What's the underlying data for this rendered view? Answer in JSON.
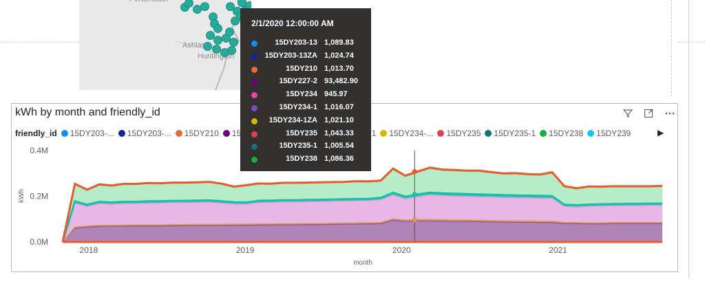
{
  "map": {
    "labels": [
      {
        "text": "Portsmouth",
        "left": 188,
        "top": -7
      },
      {
        "text": "Ashland",
        "left": 265,
        "top": 60
      },
      {
        "text": "Huntington",
        "left": 287,
        "top": 76
      }
    ]
  },
  "visual": {
    "title": "kWh by month and friendly_id",
    "icons": [
      "filter-icon",
      "focus-mode-icon",
      "more-options-icon"
    ]
  },
  "legend": {
    "title": "friendly_id",
    "items": [
      {
        "label": "15DY203-...",
        "color": "#118DFF"
      },
      {
        "label": "15DY203-...",
        "color": "#12239E"
      },
      {
        "label": "15DY210",
        "color": "#E66C37"
      },
      {
        "label": "15DY227-2",
        "color": "#6B007B"
      },
      {
        "label": "15DY234",
        "color": "#E044A7"
      },
      {
        "label": "15DY234-1",
        "color": "#744EC2"
      },
      {
        "label": "15DY234-...",
        "color": "#D9B300"
      },
      {
        "label": "15DY235",
        "color": "#D64550"
      },
      {
        "label": "15DY235-1",
        "color": "#197278"
      },
      {
        "label": "15DY238",
        "color": "#1AAB40"
      },
      {
        "label": "15DY239",
        "color": "#15C6F4"
      }
    ]
  },
  "tooltip": {
    "title": "2/1/2020 12:00:00 AM",
    "rows": [
      {
        "name": "15DY203-13",
        "value": "1,089.83",
        "color": "#118DFF"
      },
      {
        "name": "15DY203-13ZA",
        "value": "1,024.74",
        "color": "#12239E"
      },
      {
        "name": "15DY210",
        "value": "1,013.70",
        "color": "#E66C37"
      },
      {
        "name": "15DY227-2",
        "value": "93,482.90",
        "color": "#6B007B"
      },
      {
        "name": "15DY234",
        "value": "945.97",
        "color": "#E044A7"
      },
      {
        "name": "15DY234-1",
        "value": "1,016.07",
        "color": "#744EC2"
      },
      {
        "name": "15DY234-1ZA",
        "value": "1,021.10",
        "color": "#D9B300"
      },
      {
        "name": "15DY235",
        "value": "1,043.33",
        "color": "#D64550"
      },
      {
        "name": "15DY235-1",
        "value": "1,005.54",
        "color": "#197278"
      },
      {
        "name": "15DY238",
        "value": "1,086.36",
        "color": "#1AAB40"
      }
    ]
  },
  "chart_data": {
    "type": "area",
    "title": "kWh by month and friendly_id",
    "xlabel": "month",
    "ylabel": "kWh",
    "ylim": [
      0,
      400000
    ],
    "yticks": [
      "0.0M",
      "0.2M",
      "0.4M"
    ],
    "xticks": [
      "2018",
      "2019",
      "2020",
      "2021"
    ],
    "xrange": [
      "2017-11",
      "2021-09"
    ],
    "stacked": true,
    "grid": false,
    "legend_position": "top",
    "series_layers": [
      {
        "name": "base",
        "color": "#AF84B7",
        "values": [
          0,
          60000,
          65000,
          68000,
          68000,
          69000,
          70000,
          70000,
          70000,
          71000,
          71000,
          72000,
          72000,
          72000,
          73000,
          73000,
          74000,
          74000,
          75000,
          75000,
          76000,
          76000,
          77000,
          78000,
          78000,
          79000,
          80000,
          95000,
          90000,
          92000,
          92000,
          91000,
          90000,
          90000,
          89000,
          88000,
          87000,
          86000,
          86000,
          85000,
          85000,
          80000,
          80000,
          79000,
          79000,
          80000,
          80000,
          80000,
          80000,
          80000
        ]
      },
      {
        "name": "thin-orange",
        "color": "#E3A66B",
        "values": [
          0,
          5000,
          5000,
          5000,
          5000,
          5000,
          5000,
          5000,
          5000,
          5000,
          5000,
          5000,
          5000,
          5000,
          5000,
          5000,
          5000,
          5000,
          5000,
          5000,
          5000,
          5000,
          5000,
          5000,
          5000,
          5000,
          5000,
          6000,
          6000,
          6000,
          6000,
          6000,
          6000,
          6000,
          6000,
          6000,
          6000,
          6000,
          6000,
          6000,
          6000,
          5000,
          5000,
          5000,
          5000,
          5000,
          5000,
          5000,
          5000,
          5000
        ]
      },
      {
        "name": "pink",
        "color": "#E7B8E6",
        "values": [
          0,
          105000,
          85000,
          95000,
          92000,
          94000,
          93000,
          95000,
          95000,
          96000,
          96000,
          96000,
          97000,
          93000,
          88000,
          87000,
          93000,
          94000,
          95000,
          95000,
          95000,
          96000,
          96000,
          96000,
          97000,
          97000,
          100000,
          105000,
          93000,
          100000,
          108000,
          106000,
          105000,
          104000,
          103000,
          103000,
          102000,
          102000,
          101000,
          101000,
          100000,
          70000,
          68000,
          72000,
          73000,
          73000,
          74000,
          74000,
          75000,
          75000
        ]
      },
      {
        "name": "teal",
        "color": "#1CC9B3",
        "values": [
          0,
          8000,
          8000,
          8000,
          8000,
          8000,
          8000,
          8000,
          8000,
          8000,
          8000,
          8000,
          8000,
          8000,
          8000,
          8000,
          8000,
          8000,
          8000,
          8000,
          8000,
          8000,
          8000,
          8000,
          8000,
          8000,
          8000,
          10000,
          9000,
          10000,
          10000,
          10000,
          10000,
          10000,
          10000,
          10000,
          10000,
          10000,
          10000,
          10000,
          10000,
          8000,
          8000,
          8000,
          8000,
          8000,
          8000,
          8000,
          8000,
          8000
        ]
      },
      {
        "name": "light-green",
        "color": "#B4EDC7",
        "values": [
          0,
          72000,
          62000,
          72000,
          70000,
          74000,
          74000,
          76000,
          75000,
          76000,
          76000,
          76000,
          77000,
          73000,
          64000,
          71000,
          72000,
          70000,
          72000,
          72000,
          72000,
          72000,
          72000,
          72000,
          74000,
          72000,
          72000,
          100000,
          87000,
          95000,
          104000,
          99000,
          99000,
          97000,
          99000,
          94000,
          90000,
          92000,
          89000,
          88000,
          99000,
          77000,
          70000,
          75000,
          73000,
          74000,
          73000,
          73000,
          72000,
          73000
        ]
      },
      {
        "name": "top-orange",
        "color": "#EA6434",
        "values": [
          0,
          4000,
          4000,
          4000,
          4000,
          4000,
          4000,
          4000,
          4000,
          4000,
          4000,
          4000,
          4000,
          4000,
          4000,
          4000,
          4000,
          4000,
          4000,
          4000,
          4000,
          4000,
          4000,
          4000,
          4000,
          4000,
          4000,
          5000,
          5000,
          5000,
          5000,
          5000,
          5000,
          5000,
          5000,
          5000,
          5000,
          5000,
          5000,
          5000,
          5000,
          4000,
          4000,
          4000,
          4000,
          4000,
          4000,
          4000,
          4000,
          4000
        ]
      }
    ],
    "highlight_month": "2020-02"
  }
}
